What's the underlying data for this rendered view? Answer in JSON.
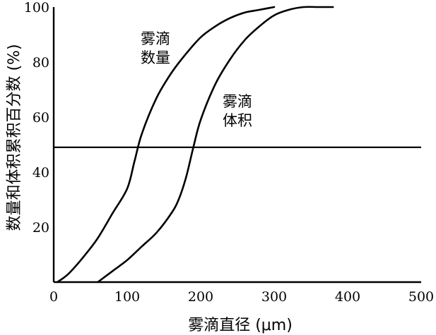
{
  "chart_data": {
    "type": "line",
    "xlabel": "雾滴直径 (μm)",
    "ylabel": "数量和体积累积百分数 (%)",
    "xlim": [
      0,
      500
    ],
    "ylim": [
      0,
      100
    ],
    "x_ticks": [
      "0",
      "100",
      "200",
      "300",
      "400",
      "500"
    ],
    "y_ticks": [
      "20",
      "40",
      "60",
      "80",
      "100"
    ],
    "reference_line": {
      "y": 49
    },
    "series": [
      {
        "name": "雾滴数量",
        "x": [
          5,
          20,
          40,
          60,
          80,
          100,
          110,
          120,
          140,
          160,
          180,
          200,
          220,
          240,
          260,
          280,
          300
        ],
        "y": [
          0,
          3,
          9,
          16,
          25,
          34,
          44,
          54,
          67,
          76,
          83,
          89,
          93,
          96,
          98,
          99,
          100
        ]
      },
      {
        "name": "雾滴体积",
        "x": [
          60,
          80,
          100,
          120,
          140,
          160,
          170,
          180,
          190,
          200,
          220,
          240,
          260,
          280,
          300,
          320,
          340,
          360,
          380
        ],
        "y": [
          0,
          4,
          8,
          13,
          18,
          25,
          30,
          38,
          49,
          59,
          72,
          81,
          88,
          93,
          97,
          99,
          100,
          100,
          100
        ]
      }
    ],
    "annotations": [
      {
        "series": 0,
        "lines": [
          "雾滴",
          "数量"
        ]
      },
      {
        "series": 1,
        "lines": [
          "雾滴",
          "体积"
        ]
      }
    ],
    "grid": false,
    "legend": "none"
  }
}
